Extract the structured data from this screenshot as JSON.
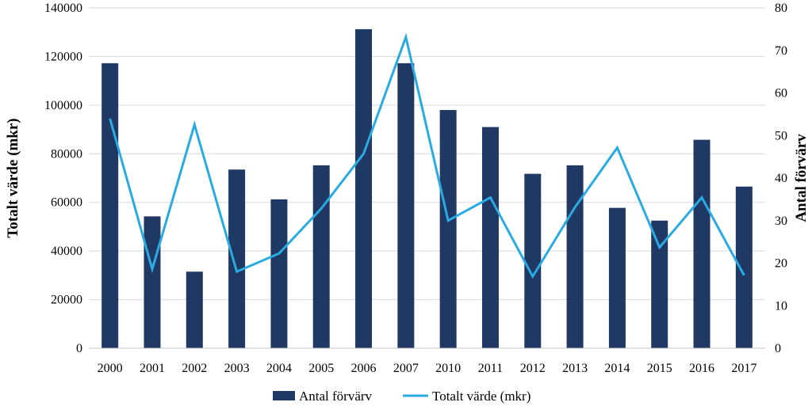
{
  "chart_data": {
    "type": "bar",
    "categories": [
      "2000",
      "2001",
      "2002",
      "2003",
      "2004",
      "2005",
      "2006",
      "2007",
      "2010",
      "2011",
      "2012",
      "2013",
      "2014",
      "2015",
      "2016",
      "2017"
    ],
    "series": [
      {
        "name": "Antal förvärv",
        "type": "bar",
        "axis": "right",
        "color": "#1f3864",
        "values": [
          67,
          31,
          18,
          42,
          35,
          43,
          75,
          67,
          56,
          52,
          41,
          43,
          33,
          30,
          49,
          38
        ]
      },
      {
        "name": "Totalt värde (mkr)",
        "type": "line",
        "axis": "left",
        "color": "#29abe2",
        "values": [
          94500,
          32500,
          92000,
          31500,
          39000,
          57500,
          80000,
          128000,
          52500,
          62000,
          29500,
          58000,
          82500,
          41500,
          62000,
          30000
        ]
      }
    ],
    "ylabel": "Totalt värde (mkr)",
    "y2label": "Antal förvärv",
    "ylim": [
      0,
      140000
    ],
    "y2lim": [
      0,
      80
    ],
    "yticks": [
      "0",
      "20000",
      "40000",
      "60000",
      "80000",
      "100000",
      "120000",
      "140000"
    ],
    "y2ticks": [
      "0",
      "10",
      "20",
      "30",
      "40",
      "50",
      "60",
      "70",
      "80"
    ],
    "grid": true,
    "legend_position": "bottom"
  }
}
